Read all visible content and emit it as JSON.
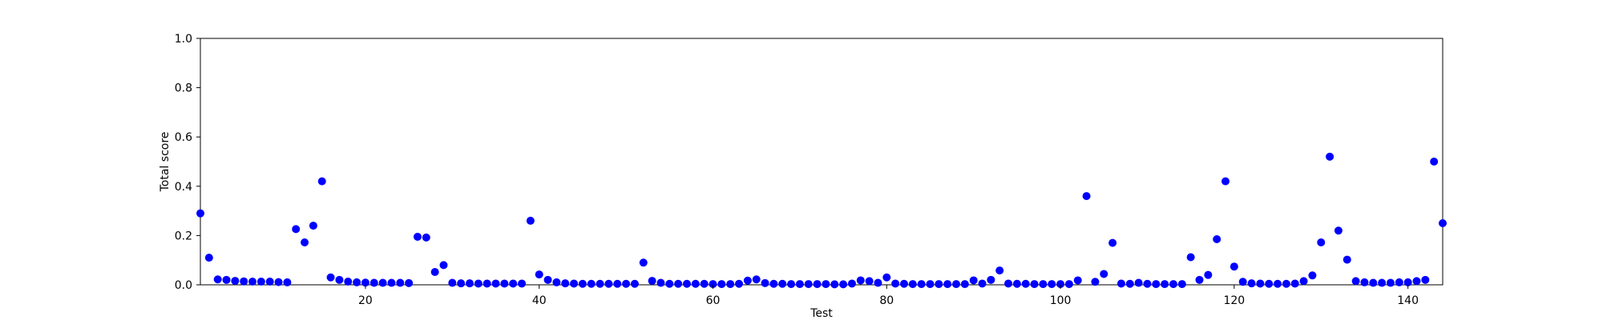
{
  "chart_data": {
    "type": "scatter",
    "xlabel": "Test",
    "ylabel": "Total score",
    "xlim": [
      1,
      144
    ],
    "ylim": [
      0,
      1.0
    ],
    "xticks": [
      20,
      40,
      60,
      80,
      100,
      120,
      140
    ],
    "yticks": [
      0.0,
      0.2,
      0.4,
      0.6,
      0.8,
      1.0
    ],
    "grid": false,
    "marker_color": "#0000ff",
    "series": [
      {
        "x": [
          1,
          2,
          3,
          4,
          5,
          6,
          7,
          8,
          9,
          10,
          11,
          12,
          13,
          14,
          15,
          16,
          17,
          18,
          19,
          20,
          21,
          22,
          23,
          24,
          25,
          26,
          27,
          28,
          29,
          30,
          31,
          32,
          33,
          34,
          35,
          36,
          37,
          38,
          39,
          40,
          41,
          42,
          43,
          44,
          45,
          46,
          47,
          48,
          49,
          50,
          51,
          52,
          53,
          54,
          55,
          56,
          57,
          58,
          59,
          60,
          61,
          62,
          63,
          64,
          65,
          66,
          67,
          68,
          69,
          70,
          71,
          72,
          73,
          74,
          75,
          76,
          77,
          78,
          79,
          80,
          81,
          82,
          83,
          84,
          85,
          86,
          87,
          88,
          89,
          90,
          91,
          92,
          93,
          94,
          95,
          96,
          97,
          98,
          99,
          100,
          101,
          102,
          103,
          104,
          105,
          106,
          107,
          108,
          109,
          110,
          111,
          112,
          113,
          114,
          115,
          116,
          117,
          118,
          119,
          120,
          121,
          122,
          123,
          124,
          125,
          126,
          127,
          128,
          129,
          130,
          131,
          132,
          133,
          134,
          135,
          136,
          137,
          138,
          139,
          140,
          141,
          142,
          143,
          144
        ],
        "y": [
          0.29,
          0.11,
          0.022,
          0.02,
          0.016,
          0.014,
          0.013,
          0.013,
          0.013,
          0.011,
          0.01,
          0.226,
          0.172,
          0.24,
          0.42,
          0.03,
          0.02,
          0.013,
          0.01,
          0.009,
          0.008,
          0.008,
          0.008,
          0.008,
          0.007,
          0.195,
          0.192,
          0.052,
          0.08,
          0.008,
          0.006,
          0.006,
          0.005,
          0.005,
          0.005,
          0.005,
          0.005,
          0.005,
          0.26,
          0.042,
          0.02,
          0.01,
          0.006,
          0.005,
          0.004,
          0.004,
          0.004,
          0.004,
          0.004,
          0.004,
          0.004,
          0.09,
          0.016,
          0.008,
          0.004,
          0.004,
          0.004,
          0.004,
          0.004,
          0.003,
          0.003,
          0.003,
          0.004,
          0.017,
          0.022,
          0.007,
          0.004,
          0.004,
          0.003,
          0.003,
          0.003,
          0.003,
          0.003,
          0.002,
          0.002,
          0.005,
          0.018,
          0.015,
          0.008,
          0.03,
          0.005,
          0.004,
          0.003,
          0.003,
          0.003,
          0.003,
          0.003,
          0.003,
          0.003,
          0.018,
          0.005,
          0.02,
          0.058,
          0.005,
          0.004,
          0.004,
          0.003,
          0.003,
          0.003,
          0.003,
          0.003,
          0.018,
          0.36,
          0.012,
          0.044,
          0.17,
          0.005,
          0.004,
          0.008,
          0.004,
          0.003,
          0.003,
          0.003,
          0.003,
          0.112,
          0.02,
          0.04,
          0.185,
          0.42,
          0.074,
          0.012,
          0.006,
          0.005,
          0.004,
          0.004,
          0.004,
          0.005,
          0.015,
          0.038,
          0.172,
          0.52,
          0.22,
          0.102,
          0.015,
          0.01,
          0.008,
          0.008,
          0.008,
          0.01,
          0.01,
          0.015,
          0.02,
          0.5,
          0.25
        ]
      }
    ]
  }
}
